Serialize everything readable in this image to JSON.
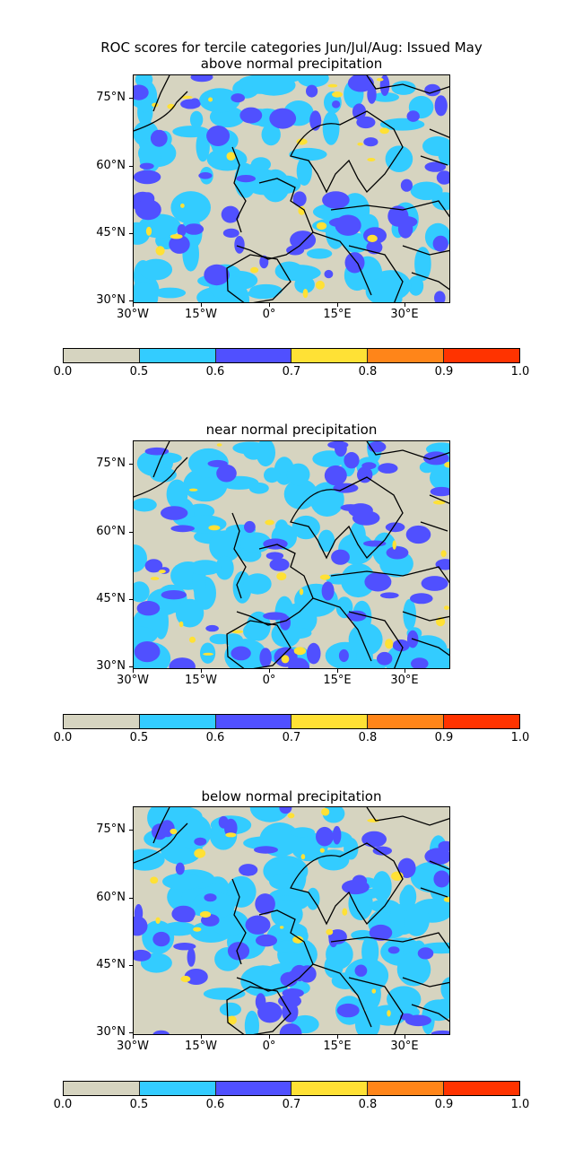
{
  "main_title": "ROC scores for tercile categories Jun/Jul/Aug: Issued May",
  "panels": [
    {
      "subtitle": "above normal precipitation"
    },
    {
      "subtitle": "near normal precipitation"
    },
    {
      "subtitle": "below normal precipitation"
    }
  ],
  "lat_labels": [
    "75°N",
    "60°N",
    "45°N",
    "30°N"
  ],
  "lon_labels": [
    "30°W",
    "15°W",
    "0°",
    "15°E",
    "30°E"
  ],
  "colorbar": {
    "labels": [
      "0.0",
      "0.5",
      "0.6",
      "0.7",
      "0.8",
      "0.9",
      "1.0"
    ],
    "colors": [
      "#d6d4c0",
      "#33ccff",
      "#5050ff",
      "#ffe135",
      "#ff8519",
      "#ff3300"
    ]
  },
  "land_color": "#d6d4c0",
  "coastline_color": "#000000"
}
